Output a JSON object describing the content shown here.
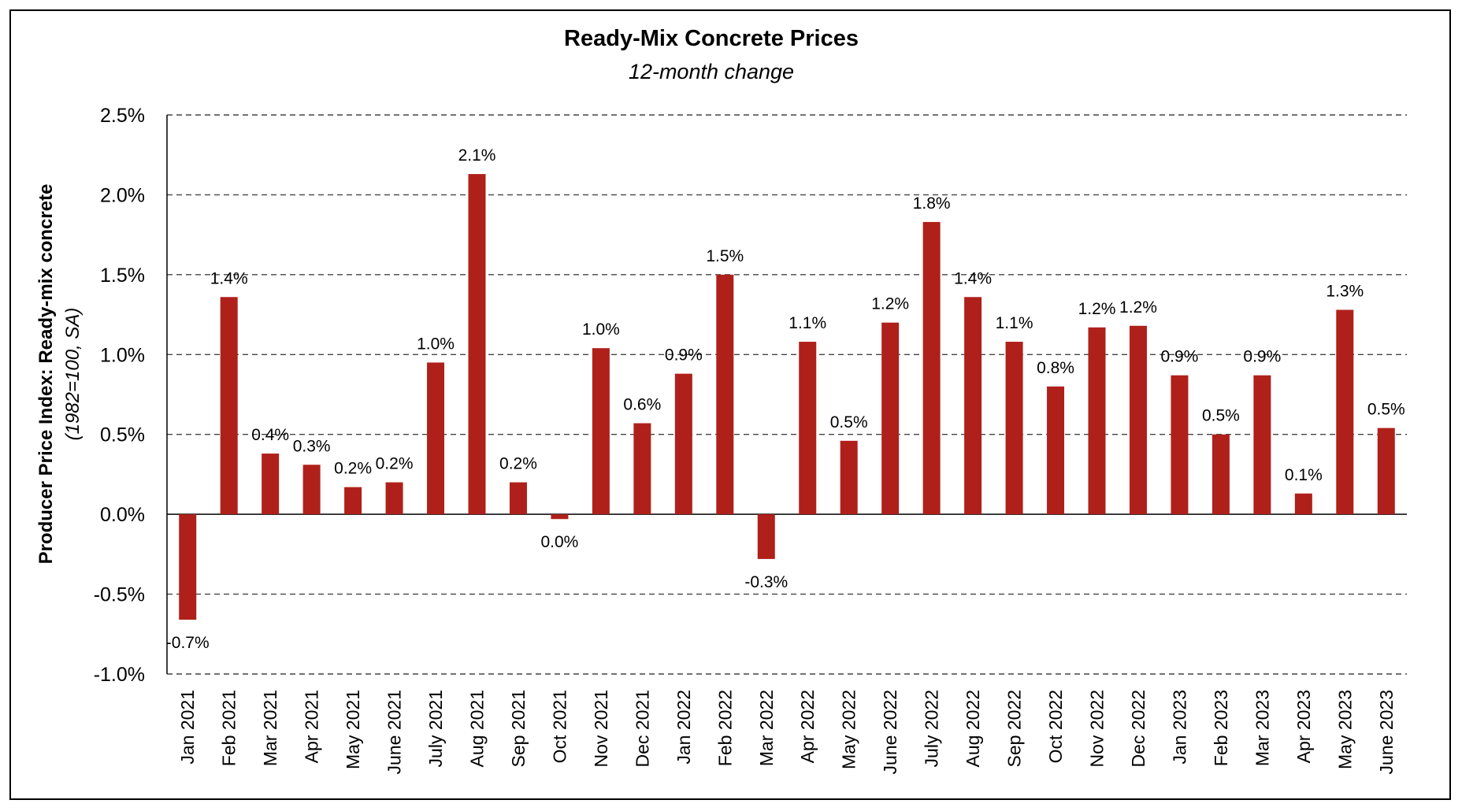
{
  "chart_data": {
    "type": "bar",
    "title": "Ready-Mix Concrete Prices",
    "subtitle": "12-month change",
    "ylabel": "Producer Price Index: Ready-mix concrete",
    "ylabel_sub": "(1982=100, SA)",
    "xlabel": "",
    "ylim": [
      -1.0,
      2.5
    ],
    "yticks": [
      -1.0,
      -0.5,
      0.0,
      0.5,
      1.0,
      1.5,
      2.0,
      2.5
    ],
    "ytick_labels": [
      "-1.0%",
      "-0.5%",
      "0.0%",
      "0.5%",
      "1.0%",
      "1.5%",
      "2.0%",
      "2.5%"
    ],
    "grid": true,
    "bar_color": "#b0201a",
    "categories": [
      "Jan 2021",
      "Feb 2021",
      "Mar 2021",
      "Apr 2021",
      "May 2021",
      "June 2021",
      "July 2021",
      "Aug 2021",
      "Sep 2021",
      "Oct 2021",
      "Nov 2021",
      "Dec 2021",
      "Jan 2022",
      "Feb 2022",
      "Mar 2022",
      "Apr 2022",
      "May 2022",
      "June 2022",
      "July 2022",
      "Aug 2022",
      "Sep 2022",
      "Oct 2022",
      "Nov 2022",
      "Dec 2022",
      "Jan 2023",
      "Feb 2023",
      "Mar 2023",
      "Apr 2023",
      "May 2023",
      "June 2023"
    ],
    "values": [
      -0.66,
      1.36,
      0.38,
      0.31,
      0.17,
      0.2,
      0.95,
      2.13,
      0.2,
      -0.03,
      1.04,
      0.57,
      0.88,
      1.5,
      -0.28,
      1.08,
      0.46,
      1.2,
      1.83,
      1.36,
      1.08,
      0.8,
      1.17,
      1.18,
      0.87,
      0.5,
      0.87,
      0.13,
      1.28,
      0.54
    ],
    "data_labels": [
      "-0.7%",
      "1.4%",
      "0.4%",
      "0.3%",
      "0.2%",
      "0.2%",
      "1.0%",
      "2.1%",
      "0.2%",
      "0.0%",
      "1.0%",
      "0.6%",
      "0.9%",
      "1.5%",
      "-0.3%",
      "1.1%",
      "0.5%",
      "1.2%",
      "1.8%",
      "1.4%",
      "1.1%",
      "0.8%",
      "1.2%",
      "1.2%",
      "0.9%",
      "0.5%",
      "0.9%",
      "0.1%",
      "1.3%",
      "0.5%"
    ]
  }
}
